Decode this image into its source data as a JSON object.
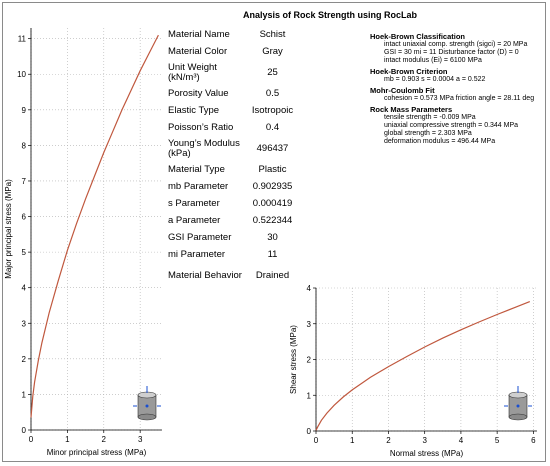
{
  "title": "Analysis of Rock Strength using RocLab",
  "properties": [
    {
      "label": "Material Name",
      "value": "Schist"
    },
    {
      "label": "Material Color",
      "value": "Gray"
    },
    {
      "label": "Unit Weight (kN/m³)",
      "value": "25"
    },
    {
      "label": "Porosity Value",
      "value": "0.5"
    },
    {
      "label": "Elastic Type",
      "value": "Isotropoic"
    },
    {
      "label": "Poisson’s Ratio",
      "value": "0.4"
    },
    {
      "label": "Young’s Modulus (kPa)",
      "value": "496437"
    },
    {
      "label": "Material Type",
      "value": "Plastic"
    },
    {
      "label": "mb Parameter",
      "value": "0.902935"
    },
    {
      "label": "s Parameter",
      "value": "0.000419"
    },
    {
      "label": "a Parameter",
      "value": "0.522344"
    },
    {
      "label": "GSI Parameter",
      "value": "30"
    },
    {
      "label": "mi Parameter",
      "value": "11"
    },
    {
      "label": "Material Behavior",
      "value": "Drained"
    }
  ],
  "info": {
    "hb_class_heading": "Hoek-Brown Classification",
    "hb_class_line1": "intact uniaxial comp. strength (sigci) = 20 MPa",
    "hb_class_line2": "GSI = 30    mi = 11    Disturbance factor (D) = 0",
    "hb_class_line3": "intact modulus (Ei) = 6100 MPa",
    "hb_crit_heading": "Hoek-Brown Criterion",
    "hb_crit_line1": "mb = 0.903    s = 0.0004    a = 0.522",
    "mc_heading": "Mohr-Coulomb Fit",
    "mc_line1": "cohesion = 0.573 MPa    friction angle = 28.11 deg",
    "rm_heading": "Rock Mass Parameters",
    "rm_line1": "tensile strength = -0.009 MPa",
    "rm_line2": "uniaxial compressive strength = 0.344 MPa",
    "rm_line3": "global strength = 2.303 MPa",
    "rm_line4": "deformation modulus = 496.44 MPa"
  },
  "chart_data": [
    {
      "type": "line",
      "xlabel": "Minor principal stress (MPa)",
      "ylabel": "Major principal stress (MPa)",
      "xlim": [
        0,
        3.6
      ],
      "ylim": [
        0,
        11.3
      ],
      "xticks": [
        0,
        1,
        2,
        3
      ],
      "yticks": [
        0,
        1,
        2,
        3,
        4,
        5,
        6,
        7,
        8,
        9,
        10,
        11
      ],
      "grid": true,
      "line_color": "#c0583e",
      "x": [
        0,
        0.05,
        0.1,
        0.2,
        0.3,
        0.5,
        0.75,
        1.0,
        1.25,
        1.5,
        1.75,
        2.0,
        2.25,
        2.5,
        2.75,
        3.0,
        3.25,
        3.5
      ],
      "y": [
        0.35,
        0.95,
        1.35,
        1.95,
        2.45,
        3.3,
        4.2,
        5.05,
        5.8,
        6.5,
        7.15,
        7.8,
        8.4,
        9.0,
        9.55,
        10.1,
        10.6,
        11.1
      ]
    },
    {
      "type": "line",
      "xlabel": "Normal stress (MPa)",
      "ylabel": "Shear stress (MPa)",
      "xlim": [
        0,
        6.1
      ],
      "ylim": [
        0,
        4
      ],
      "xticks": [
        0,
        1,
        2,
        3,
        4,
        5,
        6
      ],
      "yticks": [
        0,
        1,
        2,
        3,
        4
      ],
      "grid": true,
      "line_color": "#c0583e",
      "x": [
        0,
        0.05,
        0.15,
        0.3,
        0.5,
        0.75,
        1.0,
        1.5,
        2.0,
        2.5,
        3.0,
        3.5,
        4.0,
        4.5,
        5.0,
        5.5,
        5.9
      ],
      "y": [
        0.02,
        0.12,
        0.3,
        0.5,
        0.72,
        0.95,
        1.15,
        1.5,
        1.8,
        2.08,
        2.35,
        2.6,
        2.83,
        3.05,
        3.26,
        3.46,
        3.62
      ]
    }
  ]
}
